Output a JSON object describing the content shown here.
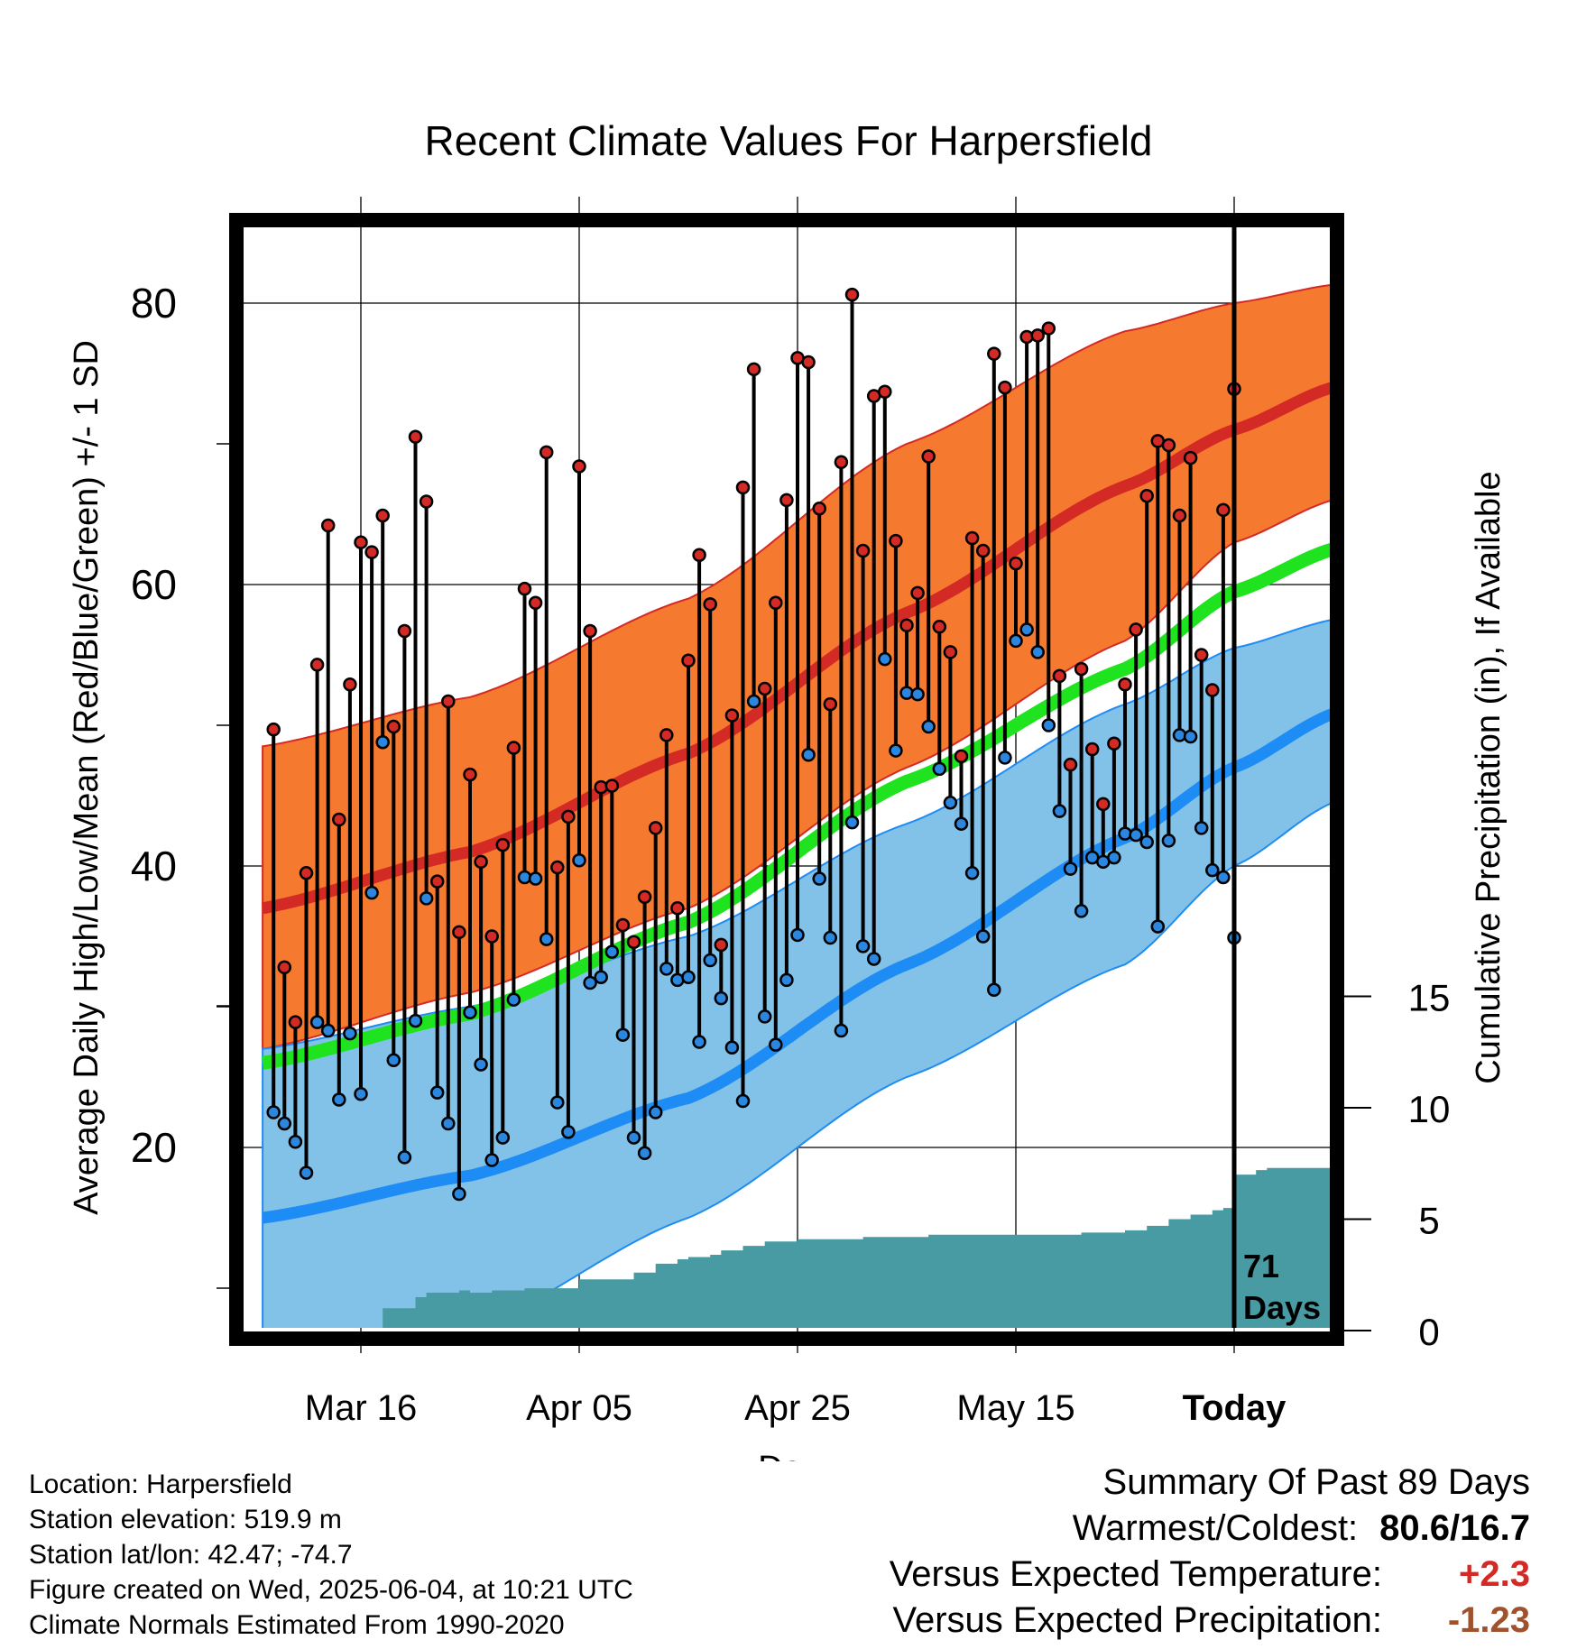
{
  "chart_data": {
    "type": "line",
    "title": "Recent Climate Values For Harpersfield",
    "xlabel": "Day",
    "ylabel": "Average Daily High/Low/Mean (Red/Blue/Green) +/- 1 SD",
    "y2label": "Cumulative Precipitation (in), If Available",
    "x_tick_labels": [
      "Mar 16",
      "Apr 05",
      "Apr 25",
      "May 15",
      "Today"
    ],
    "x_range_days": [
      -89,
      9
    ],
    "ylim": [
      10,
      85
    ],
    "y_ticks": [
      20,
      40,
      60,
      80
    ],
    "y2_ticks": [
      0,
      5,
      10,
      15
    ],
    "grid": true,
    "today_label": "71\nDays",
    "normals": {
      "x": [
        -89,
        -70,
        -50,
        -30,
        -10,
        0,
        9
      ],
      "high_mean": [
        37,
        41,
        48,
        58,
        67,
        71,
        74
      ],
      "high_upper": [
        48.5,
        52,
        59,
        70,
        78,
        80,
        81.3
      ],
      "high_lower": [
        27,
        31,
        37,
        47,
        56,
        63,
        66
      ],
      "low_mean": [
        15,
        18,
        23.5,
        33,
        42,
        47,
        50.8
      ],
      "low_upper": [
        27,
        30,
        35,
        43,
        51.5,
        55.5,
        57.5
      ],
      "low_lower": [
        3,
        7,
        15,
        25,
        33,
        40,
        44.5
      ],
      "avg_mean": [
        26,
        29.5,
        36,
        46,
        54,
        59.5,
        62.5
      ]
    },
    "daily_high": [
      49.7,
      32.8,
      28.9,
      39.5,
      54.3,
      64.2,
      43.3,
      52.9,
      63.0,
      62.3,
      64.9,
      49.9,
      56.7,
      70.5,
      65.9,
      38.9,
      51.7,
      35.3,
      46.5,
      40.3,
      35.0,
      41.5,
      48.4,
      59.7,
      58.7,
      69.4,
      39.9,
      43.5,
      68.4,
      56.7,
      45.6,
      45.7,
      35.8,
      34.6,
      37.8,
      42.7,
      49.3,
      37.0,
      54.6,
      62.1,
      58.6,
      34.4,
      50.7,
      66.9,
      75.3,
      52.6,
      58.7,
      66.0,
      76.1,
      75.8,
      65.4,
      51.5,
      68.7,
      80.6,
      62.4,
      73.4,
      73.7,
      63.1,
      57.1,
      59.4,
      69.1,
      57.0,
      55.2,
      47.8,
      63.3,
      62.4,
      76.4,
      74.0,
      61.5,
      77.6,
      77.7,
      78.2,
      53.5,
      47.2,
      54.0,
      48.3,
      44.4,
      48.7,
      52.9,
      56.8,
      66.3,
      70.2,
      69.9,
      64.9,
      69.0,
      55.0,
      52.5,
      65.3,
      73.9
    ],
    "daily_low": [
      22.5,
      21.7,
      20.4,
      18.2,
      28.9,
      28.3,
      23.4,
      28.1,
      23.8,
      38.1,
      48.8,
      26.2,
      19.3,
      29.0,
      37.7,
      23.9,
      21.7,
      16.7,
      29.6,
      25.9,
      19.1,
      20.7,
      30.5,
      39.2,
      39.1,
      34.8,
      23.2,
      21.1,
      40.4,
      31.7,
      32.1,
      33.9,
      28.0,
      20.7,
      19.6,
      22.5,
      32.7,
      31.9,
      32.1,
      27.5,
      33.3,
      30.6,
      27.1,
      23.3,
      51.7,
      29.3,
      27.3,
      31.9,
      35.1,
      47.9,
      39.1,
      34.9,
      28.3,
      43.1,
      34.3,
      33.4,
      54.7,
      48.2,
      52.3,
      52.2,
      49.9,
      46.9,
      44.5,
      43.0,
      39.5,
      35.0,
      31.2,
      47.7,
      56.0,
      56.8,
      55.2,
      50.0,
      43.9,
      39.8,
      36.8,
      40.6,
      40.3,
      40.6,
      42.3,
      42.2,
      41.7,
      35.7,
      41.8,
      49.3,
      49.2,
      42.7,
      39.7,
      39.2,
      34.9
    ],
    "cumulative_precip": {
      "x": [
        -89,
        -80,
        -79,
        -78,
        -76,
        -75,
        -74,
        -73,
        -71,
        -70,
        -68,
        -67,
        -65,
        -63,
        -60,
        -58,
        -55,
        -53,
        -51,
        -50,
        -48,
        -47,
        -45,
        -43,
        -40,
        -38,
        -36,
        -34,
        -32,
        -30,
        -28,
        -26,
        -24,
        -22,
        -20,
        -18,
        -16,
        -14,
        -12,
        -10,
        -8,
        -6,
        -4,
        -3,
        -2,
        -1,
        0,
        1,
        2,
        3,
        4,
        5,
        6,
        7,
        8,
        9
      ],
      "values": [
        0,
        0,
        0,
        1.0,
        1.0,
        1.5,
        1.7,
        1.7,
        1.8,
        1.7,
        1.8,
        1.8,
        1.9,
        1.9,
        2.3,
        2.3,
        2.6,
        3.0,
        3.2,
        3.3,
        3.4,
        3.6,
        3.8,
        4.0,
        4.1,
        4.1,
        4.1,
        4.2,
        4.2,
        4.2,
        4.3,
        4.3,
        4.3,
        4.3,
        4.3,
        4.3,
        4.3,
        4.4,
        4.4,
        4.5,
        4.7,
        5.0,
        5.2,
        5.2,
        5.4,
        5.5,
        7.0,
        7.0,
        7.2,
        7.3,
        7.3,
        7.3,
        7.3,
        7.3,
        7.3,
        7.3
      ]
    },
    "colors": {
      "high_band": "#f5792e",
      "high_mean": "#d42a26",
      "low_band": "#82c1e8",
      "low_mean": "#1e8cf5",
      "avg_mean": "#1fe31f",
      "precip": "#489ba3",
      "high_dot": "#d42a26",
      "low_dot": "#2a86de"
    }
  },
  "footer": {
    "location": "Location: Harpersfield",
    "elevation": "Station elevation: 519.9 m",
    "latlon": "Station lat/lon: 42.47; -74.7",
    "created": "Figure created on Wed, 2025-06-04, at 10:21 UTC",
    "normals_source": "Climate Normals Estimated From 1990-2020"
  },
  "summary": {
    "title": "Summary Of Past 89 Days",
    "warm_cold_label": "Warmest/Coldest:",
    "warm_cold_value": "80.6/16.7",
    "temp_label": "Versus Expected Temperature:",
    "temp_value": "+2.3",
    "temp_color": "#d42a26",
    "precip_label": "Versus Expected Precipitation:",
    "precip_value": "-1.23",
    "precip_color": "#a0522d"
  }
}
